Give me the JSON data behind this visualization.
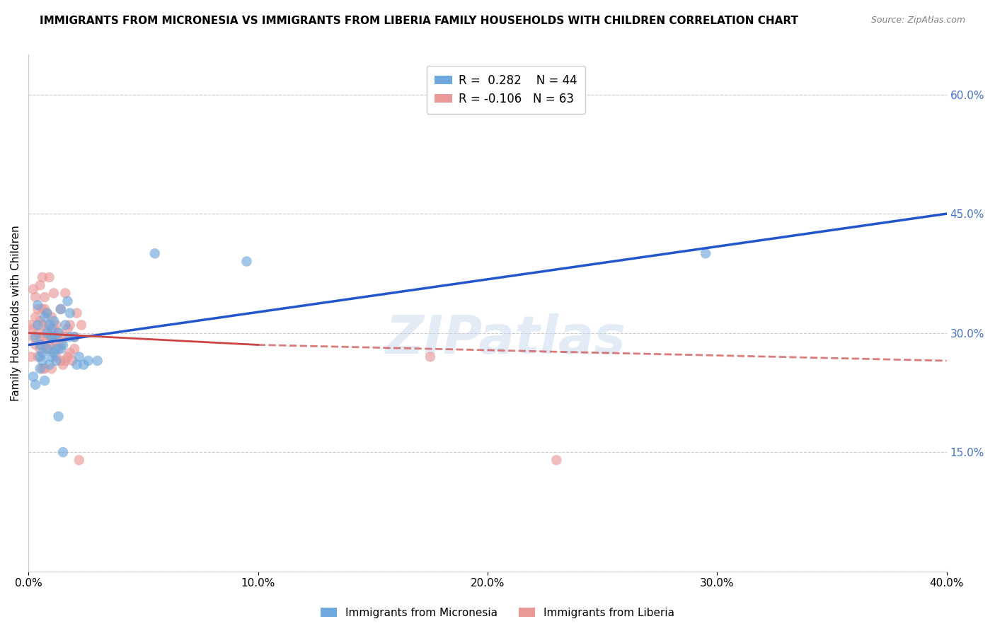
{
  "title": "IMMIGRANTS FROM MICRONESIA VS IMMIGRANTS FROM LIBERIA FAMILY HOUSEHOLDS WITH CHILDREN CORRELATION CHART",
  "source": "Source: ZipAtlas.com",
  "ylabel": "Family Households with Children",
  "xlim": [
    0.0,
    0.4
  ],
  "ylim": [
    0.0,
    0.65
  ],
  "yticks": [
    0.0,
    0.15,
    0.3,
    0.45,
    0.6
  ],
  "ytick_labels": [
    "",
    "15.0%",
    "30.0%",
    "45.0%",
    "60.0%"
  ],
  "xticks": [
    0.0,
    0.1,
    0.2,
    0.3,
    0.4
  ],
  "xtick_labels": [
    "0.0%",
    "10.0%",
    "20.0%",
    "30.0%",
    "40.0%"
  ],
  "micronesia_R": 0.282,
  "micronesia_N": 44,
  "liberia_R": -0.106,
  "liberia_N": 63,
  "micronesia_color": "#6fa8dc",
  "liberia_color": "#ea9999",
  "trend_micronesia_color": "#2255cc",
  "trend_liberia_color": "#cc4444",
  "background_color": "#ffffff",
  "grid_color": "#cccccc",
  "watermark": "ZIPatlas",
  "micronesia_x": [
    0.002,
    0.003,
    0.003,
    0.004,
    0.004,
    0.005,
    0.005,
    0.005,
    0.006,
    0.006,
    0.007,
    0.007,
    0.008,
    0.008,
    0.008,
    0.009,
    0.009,
    0.01,
    0.01,
    0.01,
    0.011,
    0.011,
    0.011,
    0.012,
    0.012,
    0.013,
    0.013,
    0.014,
    0.014,
    0.015,
    0.015,
    0.016,
    0.017,
    0.018,
    0.018,
    0.02,
    0.021,
    0.022,
    0.024,
    0.026,
    0.03,
    0.055,
    0.095,
    0.295
  ],
  "micronesia_y": [
    0.245,
    0.295,
    0.235,
    0.335,
    0.31,
    0.27,
    0.285,
    0.255,
    0.275,
    0.265,
    0.32,
    0.24,
    0.28,
    0.3,
    0.325,
    0.26,
    0.31,
    0.295,
    0.27,
    0.305,
    0.275,
    0.295,
    0.315,
    0.265,
    0.28,
    0.195,
    0.3,
    0.28,
    0.33,
    0.15,
    0.285,
    0.31,
    0.34,
    0.295,
    0.325,
    0.295,
    0.26,
    0.27,
    0.26,
    0.265,
    0.265,
    0.4,
    0.39,
    0.4
  ],
  "liberia_x": [
    0.001,
    0.001,
    0.002,
    0.002,
    0.002,
    0.003,
    0.003,
    0.003,
    0.004,
    0.004,
    0.004,
    0.005,
    0.005,
    0.005,
    0.005,
    0.006,
    0.006,
    0.006,
    0.006,
    0.006,
    0.007,
    0.007,
    0.007,
    0.007,
    0.008,
    0.008,
    0.008,
    0.009,
    0.009,
    0.009,
    0.009,
    0.01,
    0.01,
    0.01,
    0.01,
    0.011,
    0.011,
    0.011,
    0.012,
    0.012,
    0.012,
    0.013,
    0.013,
    0.014,
    0.014,
    0.014,
    0.015,
    0.015,
    0.016,
    0.016,
    0.016,
    0.017,
    0.017,
    0.018,
    0.018,
    0.019,
    0.02,
    0.02,
    0.021,
    0.022,
    0.023,
    0.175,
    0.23
  ],
  "liberia_y": [
    0.27,
    0.31,
    0.295,
    0.305,
    0.355,
    0.285,
    0.32,
    0.345,
    0.27,
    0.3,
    0.33,
    0.28,
    0.295,
    0.315,
    0.36,
    0.255,
    0.285,
    0.31,
    0.33,
    0.37,
    0.255,
    0.295,
    0.33,
    0.345,
    0.28,
    0.305,
    0.325,
    0.285,
    0.295,
    0.31,
    0.37,
    0.255,
    0.28,
    0.295,
    0.32,
    0.29,
    0.305,
    0.35,
    0.27,
    0.295,
    0.31,
    0.28,
    0.3,
    0.265,
    0.285,
    0.33,
    0.26,
    0.295,
    0.265,
    0.295,
    0.35,
    0.27,
    0.305,
    0.275,
    0.31,
    0.265,
    0.28,
    0.295,
    0.325,
    0.14,
    0.31,
    0.27,
    0.14
  ],
  "trend_mic_x0": 0.0,
  "trend_mic_y0": 0.285,
  "trend_mic_x1": 0.4,
  "trend_mic_y1": 0.45,
  "trend_lib_solid_x0": 0.0,
  "trend_lib_solid_y0": 0.3,
  "trend_lib_solid_x1": 0.1,
  "trend_lib_solid_y1": 0.285,
  "trend_lib_dash_x0": 0.1,
  "trend_lib_dash_y0": 0.285,
  "trend_lib_dash_x1": 0.4,
  "trend_lib_dash_y1": 0.265,
  "title_fontsize": 11,
  "axis_label_fontsize": 11,
  "tick_fontsize": 11,
  "legend_fontsize": 12
}
